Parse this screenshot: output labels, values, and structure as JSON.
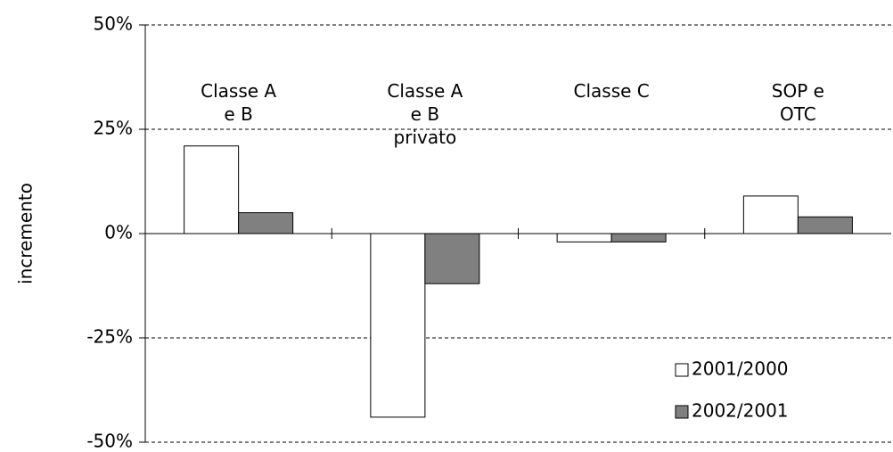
{
  "chart_data": {
    "type": "bar",
    "y_label": "incremento",
    "categories": [
      "Classe A e B",
      "Classe A e B privato",
      "Classe C",
      "SOP e OTC"
    ],
    "series": [
      {
        "name": "2001/2000",
        "color": "#ffffff",
        "values": [
          21,
          -44,
          -2,
          9
        ]
      },
      {
        "name": "2002/2001",
        "color": "#808080",
        "values": [
          5,
          -12,
          -2,
          4
        ]
      }
    ],
    "ylim": [
      -50,
      50
    ],
    "yticks": [
      {
        "value": -50,
        "label": "-50%"
      },
      {
        "value": -25,
        "label": "-25%"
      },
      {
        "value": 0,
        "label": "0%"
      },
      {
        "value": 25,
        "label": "25%"
      },
      {
        "value": 50,
        "label": "50%"
      }
    ],
    "grid": true,
    "legend": "lower right"
  }
}
